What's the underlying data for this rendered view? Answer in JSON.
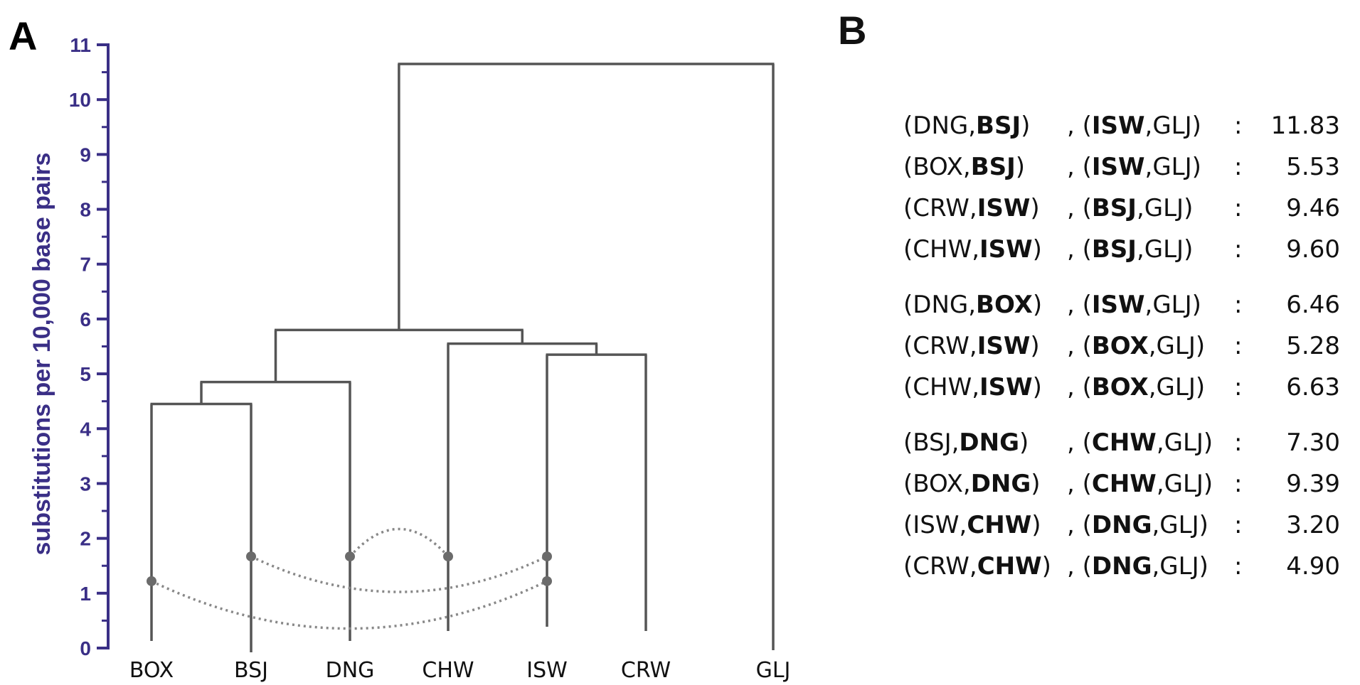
{
  "panel_a": {
    "letter": "A",
    "y_axis_title": "substitutions per 10,000 base pairs",
    "y_ticks": [
      "0",
      "1",
      "2",
      "3",
      "4",
      "5",
      "6",
      "7",
      "8",
      "9",
      "10",
      "11"
    ],
    "ylim": [
      0,
      11
    ],
    "leaves": [
      "BOX",
      "BSJ",
      "DNG",
      "CHW",
      "ISW",
      "CRW",
      "GLJ"
    ],
    "merges": [
      {
        "left": "BOX",
        "right": "BSJ",
        "height": 4.45
      },
      {
        "left": "BOX+BSJ",
        "right": "DNG",
        "height": 4.85
      },
      {
        "left": "ISW",
        "right": "CRW",
        "height": 5.35
      },
      {
        "left": "CHW",
        "right": "ISW+CRW",
        "height": 5.55
      },
      {
        "left": "BOX+BSJ+DNG",
        "right": "CHW+ISW+CRW",
        "height": 5.8
      },
      {
        "left": "ingroup",
        "right": "GLJ",
        "height": 10.65
      }
    ],
    "gene_flow_links": [
      {
        "from": "BOX",
        "to": "ISW",
        "height": 1.22
      },
      {
        "from": "BSJ",
        "to": "ISW",
        "height": 1.67
      },
      {
        "from": "DNG",
        "to": "CHW",
        "height": 1.67
      }
    ],
    "colors": {
      "axis": "#3a2f86",
      "branch": "#555555",
      "link": "#888888"
    }
  },
  "panel_b": {
    "letter": "B",
    "groups": [
      {
        "rows": [
          {
            "p1": [
              {
                "t": "(DNG,",
                "b": false
              },
              {
                "t": "BSJ",
                "b": true
              },
              {
                "t": ")",
                "b": false
              }
            ],
            "p2": [
              {
                "t": ", (",
                "b": false
              },
              {
                "t": "ISW",
                "b": true
              },
              {
                "t": ",GLJ)",
                "b": false
              }
            ],
            "colon": ":",
            "value": "11.83"
          },
          {
            "p1": [
              {
                "t": "(BOX,",
                "b": false
              },
              {
                "t": "BSJ",
                "b": true
              },
              {
                "t": ")",
                "b": false
              }
            ],
            "p2": [
              {
                "t": ", (",
                "b": false
              },
              {
                "t": "ISW",
                "b": true
              },
              {
                "t": ",GLJ)",
                "b": false
              }
            ],
            "colon": ":",
            "value": "5.53"
          },
          {
            "p1": [
              {
                "t": "(CRW,",
                "b": false
              },
              {
                "t": "ISW",
                "b": true
              },
              {
                "t": ")",
                "b": false
              }
            ],
            "p2": [
              {
                "t": ", (",
                "b": false
              },
              {
                "t": "BSJ",
                "b": true
              },
              {
                "t": ",GLJ)",
                "b": false
              }
            ],
            "colon": ":",
            "value": "9.46"
          },
          {
            "p1": [
              {
                "t": "(CHW,",
                "b": false
              },
              {
                "t": "ISW",
                "b": true
              },
              {
                "t": ")",
                "b": false
              }
            ],
            "p2": [
              {
                "t": ", (",
                "b": false
              },
              {
                "t": "BSJ",
                "b": true
              },
              {
                "t": ",GLJ)",
                "b": false
              }
            ],
            "colon": ":",
            "value": "9.60"
          }
        ]
      },
      {
        "rows": [
          {
            "p1": [
              {
                "t": "(DNG,",
                "b": false
              },
              {
                "t": "BOX",
                "b": true
              },
              {
                "t": ")",
                "b": false
              }
            ],
            "p2": [
              {
                "t": ", (",
                "b": false
              },
              {
                "t": "ISW",
                "b": true
              },
              {
                "t": ",GLJ)",
                "b": false
              }
            ],
            "colon": ":",
            "value": "6.46"
          },
          {
            "p1": [
              {
                "t": "(CRW,",
                "b": false
              },
              {
                "t": "ISW",
                "b": true
              },
              {
                "t": ")",
                "b": false
              }
            ],
            "p2": [
              {
                "t": ", (",
                "b": false
              },
              {
                "t": "BOX",
                "b": true
              },
              {
                "t": ",GLJ)",
                "b": false
              }
            ],
            "colon": ":",
            "value": "5.28"
          },
          {
            "p1": [
              {
                "t": "(CHW,",
                "b": false
              },
              {
                "t": "ISW",
                "b": true
              },
              {
                "t": ")",
                "b": false
              }
            ],
            "p2": [
              {
                "t": ", (",
                "b": false
              },
              {
                "t": "BOX",
                "b": true
              },
              {
                "t": ",GLJ)",
                "b": false
              }
            ],
            "colon": ":",
            "value": "6.63"
          }
        ]
      },
      {
        "rows": [
          {
            "p1": [
              {
                "t": "(BSJ,",
                "b": false
              },
              {
                "t": "DNG",
                "b": true
              },
              {
                "t": ")",
                "b": false
              }
            ],
            "p2": [
              {
                "t": ", (",
                "b": false
              },
              {
                "t": "CHW",
                "b": true
              },
              {
                "t": ",GLJ)",
                "b": false
              }
            ],
            "colon": ":",
            "value": "7.30"
          },
          {
            "p1": [
              {
                "t": "(BOX,",
                "b": false
              },
              {
                "t": "DNG",
                "b": true
              },
              {
                "t": ")",
                "b": false
              }
            ],
            "p2": [
              {
                "t": ", (",
                "b": false
              },
              {
                "t": "CHW",
                "b": true
              },
              {
                "t": ",GLJ)",
                "b": false
              }
            ],
            "colon": ":",
            "value": "9.39"
          },
          {
            "p1": [
              {
                "t": "(ISW,",
                "b": false
              },
              {
                "t": "CHW",
                "b": true
              },
              {
                "t": ")",
                "b": false
              }
            ],
            "p2": [
              {
                "t": ", (",
                "b": false
              },
              {
                "t": "DNG",
                "b": true
              },
              {
                "t": ",GLJ)",
                "b": false
              }
            ],
            "colon": ":",
            "value": "3.20"
          },
          {
            "p1": [
              {
                "t": "(CRW,",
                "b": false
              },
              {
                "t": "CHW",
                "b": true
              },
              {
                "t": ")",
                "b": false
              }
            ],
            "p2": [
              {
                "t": ", (",
                "b": false
              },
              {
                "t": "DNG",
                "b": true
              },
              {
                "t": ",GLJ)",
                "b": false
              }
            ],
            "colon": ":",
            "value": "4.90"
          }
        ]
      }
    ]
  }
}
